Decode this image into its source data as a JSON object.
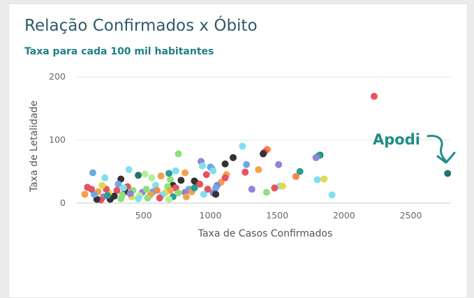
{
  "header": {
    "title": "Relação Confirmados x Óbito",
    "subtitle": "Taxa para cada 100 mil habitantes"
  },
  "annotation": {
    "label": "Apodi",
    "color": "#1e8e86"
  },
  "chart_data": {
    "type": "scatter",
    "xlabel": "Taxa de Casos Confirmados",
    "ylabel": "Taxa de Letalidade",
    "xlim": [
      0,
      2800
    ],
    "ylim": [
      0,
      200
    ],
    "xticks": [
      500,
      1000,
      1500,
      2000,
      2500
    ],
    "yticks": [
      0,
      100,
      200
    ],
    "grid": "horizontal",
    "points": [
      {
        "x": 2225,
        "y": 169,
        "color": "#e8525f"
      },
      {
        "x": 2775,
        "y": 47,
        "color": "#22766f"
      },
      {
        "x": 1240,
        "y": 90,
        "color": "#7fe0ee"
      },
      {
        "x": 1425,
        "y": 85,
        "color": "#f28a4e"
      },
      {
        "x": 1405,
        "y": 81,
        "color": "#e8525f"
      },
      {
        "x": 1395,
        "y": 78,
        "color": "#333333"
      },
      {
        "x": 1820,
        "y": 76,
        "color": "#22766f"
      },
      {
        "x": 1810,
        "y": 75,
        "color": "#2b9e93"
      },
      {
        "x": 1790,
        "y": 72,
        "color": "#8f83dc"
      },
      {
        "x": 1170,
        "y": 72,
        "color": "#333333"
      },
      {
        "x": 1110,
        "y": 62,
        "color": "#333333"
      },
      {
        "x": 1270,
        "y": 61,
        "color": "#6fa8e8"
      },
      {
        "x": 1510,
        "y": 61,
        "color": "#8f83dc"
      },
      {
        "x": 760,
        "y": 78,
        "color": "#8ee07a"
      },
      {
        "x": 930,
        "y": 66,
        "color": "#8f83dc"
      },
      {
        "x": 940,
        "y": 59,
        "color": "#7fe0ee"
      },
      {
        "x": 1000,
        "y": 57,
        "color": "#6fa8e8"
      },
      {
        "x": 1010,
        "y": 55,
        "color": "#6fa8e8"
      },
      {
        "x": 1020,
        "y": 51,
        "color": "#7fe0ee"
      },
      {
        "x": 1360,
        "y": 53,
        "color": "#f2a14e"
      },
      {
        "x": 1670,
        "y": 50,
        "color": "#2b9e93"
      },
      {
        "x": 1260,
        "y": 49,
        "color": "#e8525f"
      },
      {
        "x": 1120,
        "y": 45,
        "color": "#f2a14e"
      },
      {
        "x": 970,
        "y": 45,
        "color": "#e8525f"
      },
      {
        "x": 1850,
        "y": 38,
        "color": "#e3d84c"
      },
      {
        "x": 1800,
        "y": 37,
        "color": "#7fe0ee"
      },
      {
        "x": 1640,
        "y": 42,
        "color": "#f28a4e"
      },
      {
        "x": 120,
        "y": 48,
        "color": "#6fa8e8"
      },
      {
        "x": 390,
        "y": 53,
        "color": "#7fe0ee"
      },
      {
        "x": 460,
        "y": 44,
        "color": "#22766f"
      },
      {
        "x": 510,
        "y": 46,
        "color": "#b6ec9c"
      },
      {
        "x": 630,
        "y": 43,
        "color": "#f2a14e"
      },
      {
        "x": 690,
        "y": 47,
        "color": "#2b9e93"
      },
      {
        "x": 740,
        "y": 51,
        "color": "#7fe0ee"
      },
      {
        "x": 810,
        "y": 48,
        "color": "#f2a14e"
      },
      {
        "x": 210,
        "y": 40,
        "color": "#7fe0ee"
      },
      {
        "x": 330,
        "y": 38,
        "color": "#333333"
      },
      {
        "x": 560,
        "y": 40,
        "color": "#b6ec9c"
      },
      {
        "x": 700,
        "y": 37,
        "color": "#8ee07a"
      },
      {
        "x": 780,
        "y": 36,
        "color": "#333333"
      },
      {
        "x": 880,
        "y": 35,
        "color": "#333333"
      },
      {
        "x": 900,
        "y": 31,
        "color": "#333333"
      },
      {
        "x": 920,
        "y": 30,
        "color": "#e8525f"
      },
      {
        "x": 1080,
        "y": 33,
        "color": "#f2a14e"
      },
      {
        "x": 1110,
        "y": 40,
        "color": "#e8525f"
      },
      {
        "x": 1310,
        "y": 22,
        "color": "#8f83dc"
      },
      {
        "x": 1420,
        "y": 17,
        "color": "#8ee07a"
      },
      {
        "x": 1520,
        "y": 27,
        "color": "#7fe0ee"
      },
      {
        "x": 1540,
        "y": 27,
        "color": "#e3d84c"
      },
      {
        "x": 1480,
        "y": 24,
        "color": "#e8525f"
      },
      {
        "x": 1910,
        "y": 13,
        "color": "#7fe0ee"
      },
      {
        "x": 1050,
        "y": 28,
        "color": "#8f83dc"
      },
      {
        "x": 1040,
        "y": 24,
        "color": "#6fa8e8"
      },
      {
        "x": 980,
        "y": 22,
        "color": "#e8525f"
      },
      {
        "x": 1020,
        "y": 16,
        "color": "#8f83dc"
      },
      {
        "x": 1040,
        "y": 14,
        "color": "#333333"
      },
      {
        "x": 950,
        "y": 14,
        "color": "#7fe0ee"
      },
      {
        "x": 840,
        "y": 22,
        "color": "#6fa8e8"
      },
      {
        "x": 860,
        "y": 18,
        "color": "#f2a14e"
      },
      {
        "x": 810,
        "y": 17,
        "color": "#8f83dc"
      },
      {
        "x": 820,
        "y": 10,
        "color": "#f2a14e"
      },
      {
        "x": 720,
        "y": 28,
        "color": "#333333"
      },
      {
        "x": 680,
        "y": 26,
        "color": "#8ee07a"
      },
      {
        "x": 740,
        "y": 24,
        "color": "#e8525f"
      },
      {
        "x": 700,
        "y": 20,
        "color": "#f2a14e"
      },
      {
        "x": 660,
        "y": 16,
        "color": "#e3d84c"
      },
      {
        "x": 640,
        "y": 13,
        "color": "#7fe0ee"
      },
      {
        "x": 620,
        "y": 8,
        "color": "#e8525f"
      },
      {
        "x": 590,
        "y": 28,
        "color": "#7fe0ee"
      },
      {
        "x": 570,
        "y": 18,
        "color": "#6fa8e8"
      },
      {
        "x": 550,
        "y": 13,
        "color": "#f2a14e"
      },
      {
        "x": 530,
        "y": 8,
        "color": "#8ee07a"
      },
      {
        "x": 490,
        "y": 17,
        "color": "#8f83dc"
      },
      {
        "x": 470,
        "y": 12,
        "color": "#b6ec9c"
      },
      {
        "x": 460,
        "y": 7,
        "color": "#7fe0ee"
      },
      {
        "x": 420,
        "y": 20,
        "color": "#8ee07a"
      },
      {
        "x": 410,
        "y": 10,
        "color": "#e3d84c"
      },
      {
        "x": 380,
        "y": 26,
        "color": "#e8525f"
      },
      {
        "x": 360,
        "y": 18,
        "color": "#333333"
      },
      {
        "x": 340,
        "y": 13,
        "color": "#8ee07a"
      },
      {
        "x": 330,
        "y": 7,
        "color": "#8ee07a"
      },
      {
        "x": 310,
        "y": 30,
        "color": "#6fa8e8"
      },
      {
        "x": 300,
        "y": 20,
        "color": "#e8525f"
      },
      {
        "x": 280,
        "y": 11,
        "color": "#333333"
      },
      {
        "x": 250,
        "y": 6,
        "color": "#333333"
      },
      {
        "x": 240,
        "y": 16,
        "color": "#e3d84c"
      },
      {
        "x": 220,
        "y": 22,
        "color": "#e8525f"
      },
      {
        "x": 200,
        "y": 10,
        "color": "#8f83dc"
      },
      {
        "x": 190,
        "y": 28,
        "color": "#e3d84c"
      },
      {
        "x": 180,
        "y": 5,
        "color": "#e8525f"
      },
      {
        "x": 160,
        "y": 18,
        "color": "#f2a14e"
      },
      {
        "x": 150,
        "y": 6,
        "color": "#333333"
      },
      {
        "x": 130,
        "y": 14,
        "color": "#6fa8e8"
      },
      {
        "x": 110,
        "y": 22,
        "color": "#e8525f"
      },
      {
        "x": 80,
        "y": 25,
        "color": "#e8525f"
      },
      {
        "x": 60,
        "y": 14,
        "color": "#f2a14e"
      },
      {
        "x": 720,
        "y": 10,
        "color": "#2b9e93"
      },
      {
        "x": 760,
        "y": 16,
        "color": "#8ee07a"
      },
      {
        "x": 690,
        "y": 6,
        "color": "#b6ec9c"
      },
      {
        "x": 520,
        "y": 22,
        "color": "#8ee07a"
      },
      {
        "x": 600,
        "y": 20,
        "color": "#f28a4e"
      },
      {
        "x": 880,
        "y": 24,
        "color": "#2b9e93"
      },
      {
        "x": 230,
        "y": 12,
        "color": "#2b9e93"
      },
      {
        "x": 350,
        "y": 24,
        "color": "#7fe0ee"
      },
      {
        "x": 400,
        "y": 15,
        "color": "#8f83dc"
      }
    ]
  }
}
